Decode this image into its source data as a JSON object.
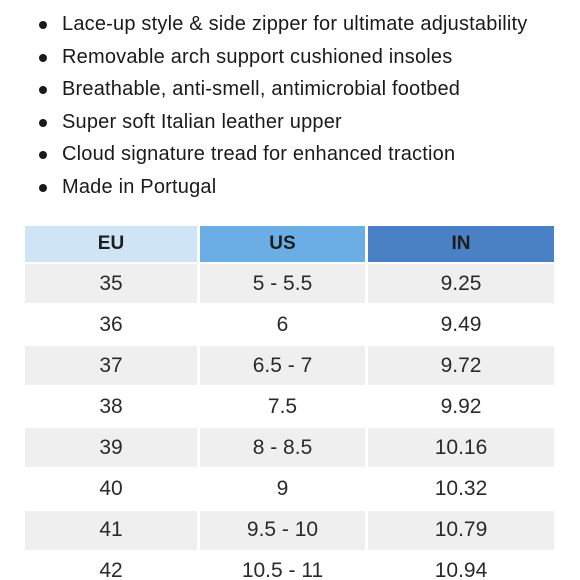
{
  "features": [
    "Lace-up style & side zipper for ultimate adjustability",
    "Removable arch support cushioned insoles",
    "Breathable, anti-smell, antimicrobial footbed",
    "Super soft Italian leather upper",
    "Cloud signature tread for enhanced traction",
    "Made in Portugal"
  ],
  "size_chart": {
    "headers": [
      "EU",
      "US",
      "IN"
    ],
    "header_colors": [
      "#cfe5f6",
      "#6aaee5",
      "#4a80c4"
    ],
    "rows": [
      [
        "35",
        "5 - 5.5",
        "9.25"
      ],
      [
        "36",
        "6",
        "9.49"
      ],
      [
        "37",
        "6.5 - 7",
        "9.72"
      ],
      [
        "38",
        "7.5",
        "9.92"
      ],
      [
        "39",
        "8 - 8.5",
        "10.16"
      ],
      [
        "40",
        "9",
        "10.32"
      ],
      [
        "41",
        "9.5 - 10",
        "10.79"
      ],
      [
        "42",
        "10.5 - 11",
        "10.94"
      ]
    ]
  }
}
